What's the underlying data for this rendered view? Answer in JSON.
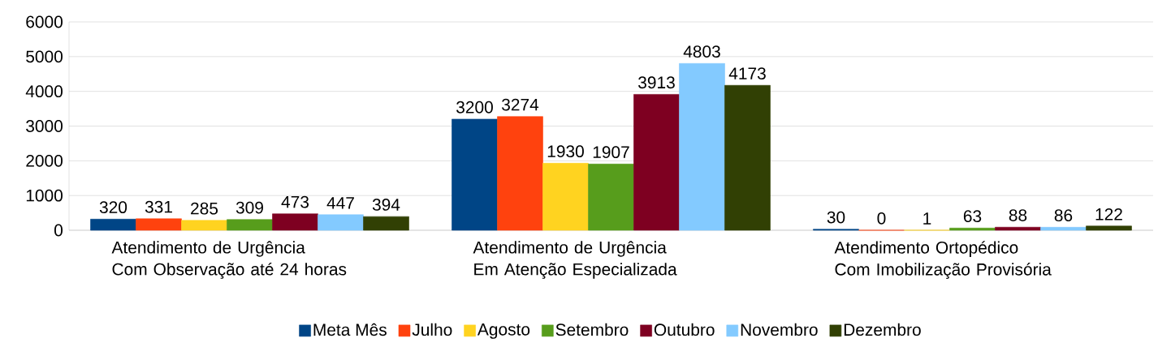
{
  "chart_data": {
    "type": "bar",
    "categories": [
      "Atendimento de Urgência\nCom Observação até 24 horas",
      "Atendimento de Urgência\nEm Atenção Especializada",
      "Atendimento Ortopédico\nCom Imobilização Provisória"
    ],
    "series": [
      {
        "name": "Meta Mês",
        "color": "#004586",
        "values": [
          320,
          3200,
          30
        ],
        "value_labels": [
          "320",
          "3200",
          "30"
        ]
      },
      {
        "name": "Julho",
        "color": "#ff420e",
        "values": [
          331,
          3274,
          0
        ],
        "value_labels": [
          "331",
          "3274",
          "0"
        ]
      },
      {
        "name": "Agosto",
        "color": "#ffd320",
        "values": [
          285,
          1930,
          1
        ],
        "value_labels": [
          "285",
          "1930",
          "1"
        ]
      },
      {
        "name": "Setembro",
        "color": "#579d1c",
        "values": [
          309,
          1907,
          63
        ],
        "value_labels": [
          "309",
          "1907",
          "63"
        ]
      },
      {
        "name": "Outubro",
        "color": "#7e0021",
        "values": [
          473,
          3913,
          88
        ],
        "value_labels": [
          "473",
          "3913",
          "88"
        ]
      },
      {
        "name": "Novembro",
        "color": "#83caff",
        "values": [
          447,
          4803,
          86
        ],
        "value_labels": [
          "447",
          "4803",
          "86"
        ]
      },
      {
        "name": "Dezembro",
        "color": "#314004",
        "values": [
          394,
          4173,
          122
        ],
        "value_labels": [
          "394",
          "4173",
          "122"
        ]
      }
    ],
    "ylim": [
      0,
      6000
    ],
    "yticks": [
      0,
      1000,
      2000,
      3000,
      4000,
      5000,
      6000
    ],
    "grid": "y",
    "legend": "bottom"
  }
}
